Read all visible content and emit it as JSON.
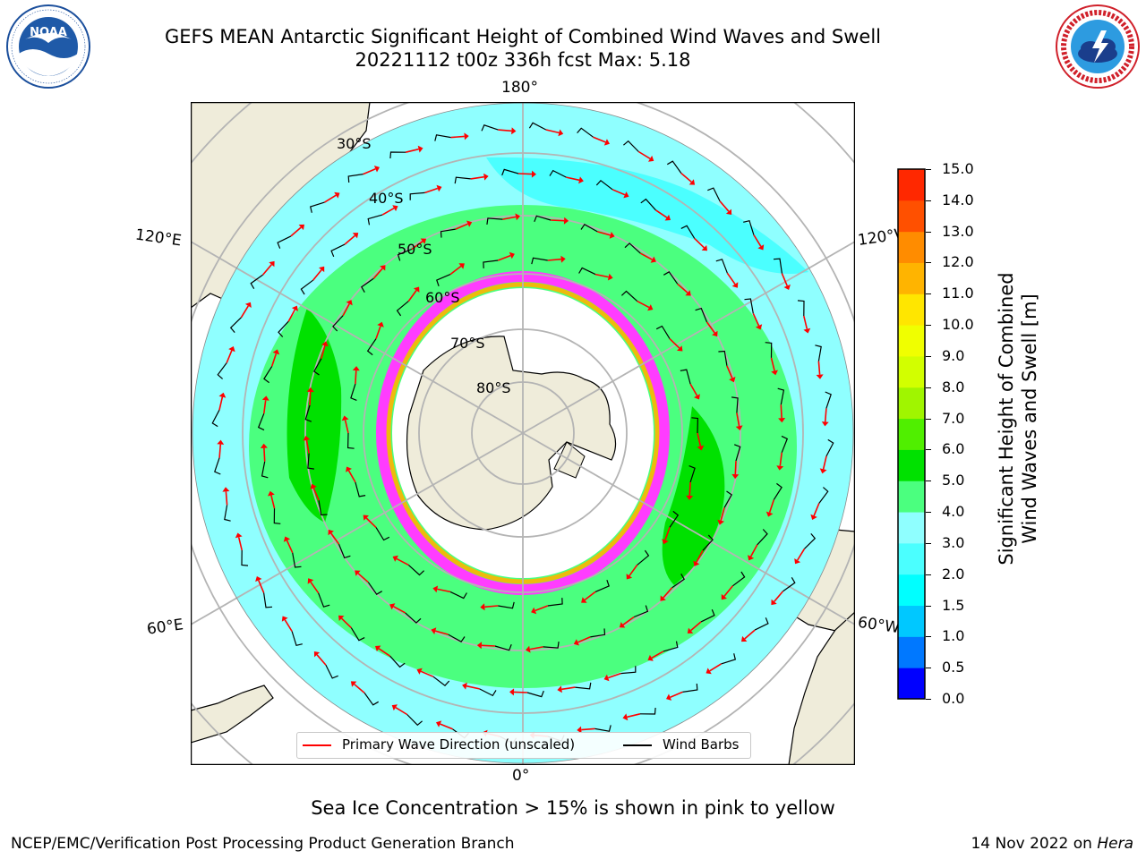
{
  "title": {
    "line1": "GEFS MEAN Antarctic Significant Height of Combined Wind Waves and Swell",
    "line2": "20221112 t00z 336h fcst   Max: 5.18"
  },
  "logos": {
    "noaa": {
      "text": "NOAA",
      "ring_text": "NATIONAL OCEANIC AND ATMOSPHERIC ADMINISTRATION · U.S. DEPARTMENT OF COMMERCE"
    },
    "nws": {
      "ring_text": "NATIONAL WEATHER SERVICE"
    }
  },
  "map": {
    "projection": "south polar stereographic",
    "longitude_labels": [
      "180°",
      "120°E",
      "120°W",
      "60°E",
      "60°W",
      "0°"
    ],
    "latitude_labels": [
      "30°S",
      "40°S",
      "50°S",
      "60°S",
      "70°S",
      "80°S"
    ],
    "colors": {
      "ocean_low": "#8fffff",
      "ocean_mid": "#4bff7f",
      "ocean_high": "#00e100",
      "land": "#efecda",
      "ice": "#ffffff",
      "arrow": "#ff0000",
      "barb": "#000000",
      "grid": "#b4b4b4"
    }
  },
  "legend": {
    "items": [
      {
        "label": "Primary Wave Direction (unscaled)",
        "color": "#ff0000"
      },
      {
        "label": "Wind Barbs",
        "color": "#000000"
      }
    ]
  },
  "colorbar": {
    "label_line1": "Significant Height of Combined",
    "label_line2": "Wind Waves and Swell [m]",
    "ticks": [
      "0.0",
      "0.5",
      "1.0",
      "1.5",
      "2.0",
      "3.0",
      "4.0",
      "5.0",
      "6.0",
      "7.0",
      "8.0",
      "9.0",
      "10.0",
      "11.0",
      "12.0",
      "13.0",
      "14.0",
      "15.0"
    ],
    "colors": [
      "#0000ff",
      "#0078ff",
      "#00c8ff",
      "#00ffff",
      "#4bffff",
      "#8fffff",
      "#4bff7f",
      "#00e100",
      "#50ef00",
      "#a0f500",
      "#d2ff00",
      "#f0ff00",
      "#ffe600",
      "#ffb400",
      "#ff8c00",
      "#ff5000",
      "#ff2800",
      "#ff0000"
    ]
  },
  "chart_data": {
    "type": "heatmap",
    "variable": "Significant Height of Combined Wind Waves and Swell",
    "units": "m",
    "max": 5.18,
    "colorbar_range": [
      0,
      15
    ]
  },
  "note": "Sea Ice Concentration > 15% is shown in pink to yellow",
  "footer": {
    "left": "NCEP/EMC/Verification Post Processing Product Generation Branch",
    "right_date": "14 Nov 2022 on ",
    "right_host": "Hera"
  }
}
